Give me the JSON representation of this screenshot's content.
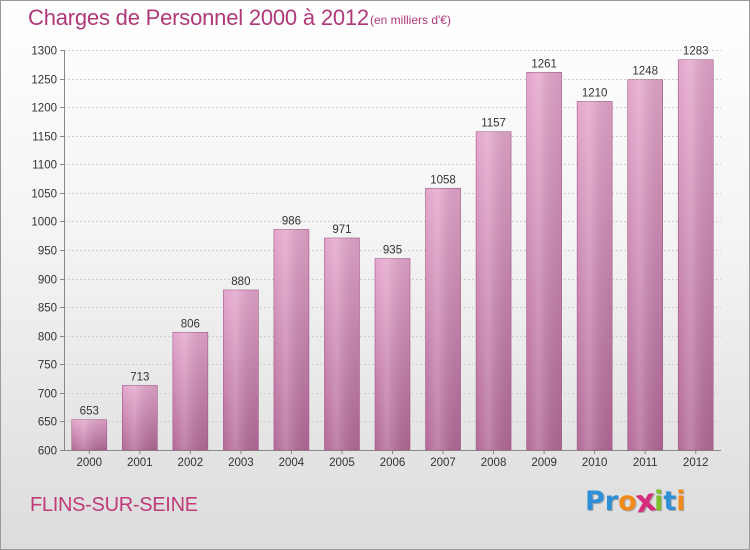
{
  "header": {
    "title": "Charges de Personnel 2000 à 2012",
    "unit_note": "(en milliers d'€)"
  },
  "footer": {
    "commune": "FLINS-SUR-SEINE",
    "logo_letters": [
      {
        "char": "P",
        "color": "#2e8fd6"
      },
      {
        "char": "r",
        "color": "#2e8fd6"
      },
      {
        "char": "o",
        "color": "#f28a1a"
      },
      {
        "char": "x",
        "color": "#d72b7c"
      },
      {
        "char": "i",
        "color": "#7cbf2a"
      },
      {
        "char": "t",
        "color": "#2e8fd6"
      },
      {
        "char": "i",
        "color": "#f28a1a"
      }
    ]
  },
  "colors": {
    "bar_top": "#e4a6cc",
    "bar_bottom": "#b36a98",
    "title": "#b03878",
    "grid": "#cfcfcf"
  },
  "chart_data": {
    "type": "bar",
    "title": "Charges de Personnel 2000 à 2012",
    "subtitle": "(en milliers d'€)",
    "xlabel": "",
    "ylabel": "",
    "categories": [
      "2000",
      "2001",
      "2002",
      "2003",
      "2004",
      "2005",
      "2006",
      "2007",
      "2008",
      "2009",
      "2010",
      "2011",
      "2012"
    ],
    "values": [
      653,
      713,
      806,
      880,
      986,
      971,
      935,
      1058,
      1157,
      1261,
      1210,
      1248,
      1283
    ],
    "ylim": [
      600,
      1300
    ],
    "yticks": [
      600,
      650,
      700,
      750,
      800,
      850,
      900,
      950,
      1000,
      1050,
      1100,
      1150,
      1200,
      1250,
      1300
    ],
    "grid": true,
    "legend": "none",
    "data_labels": true
  }
}
